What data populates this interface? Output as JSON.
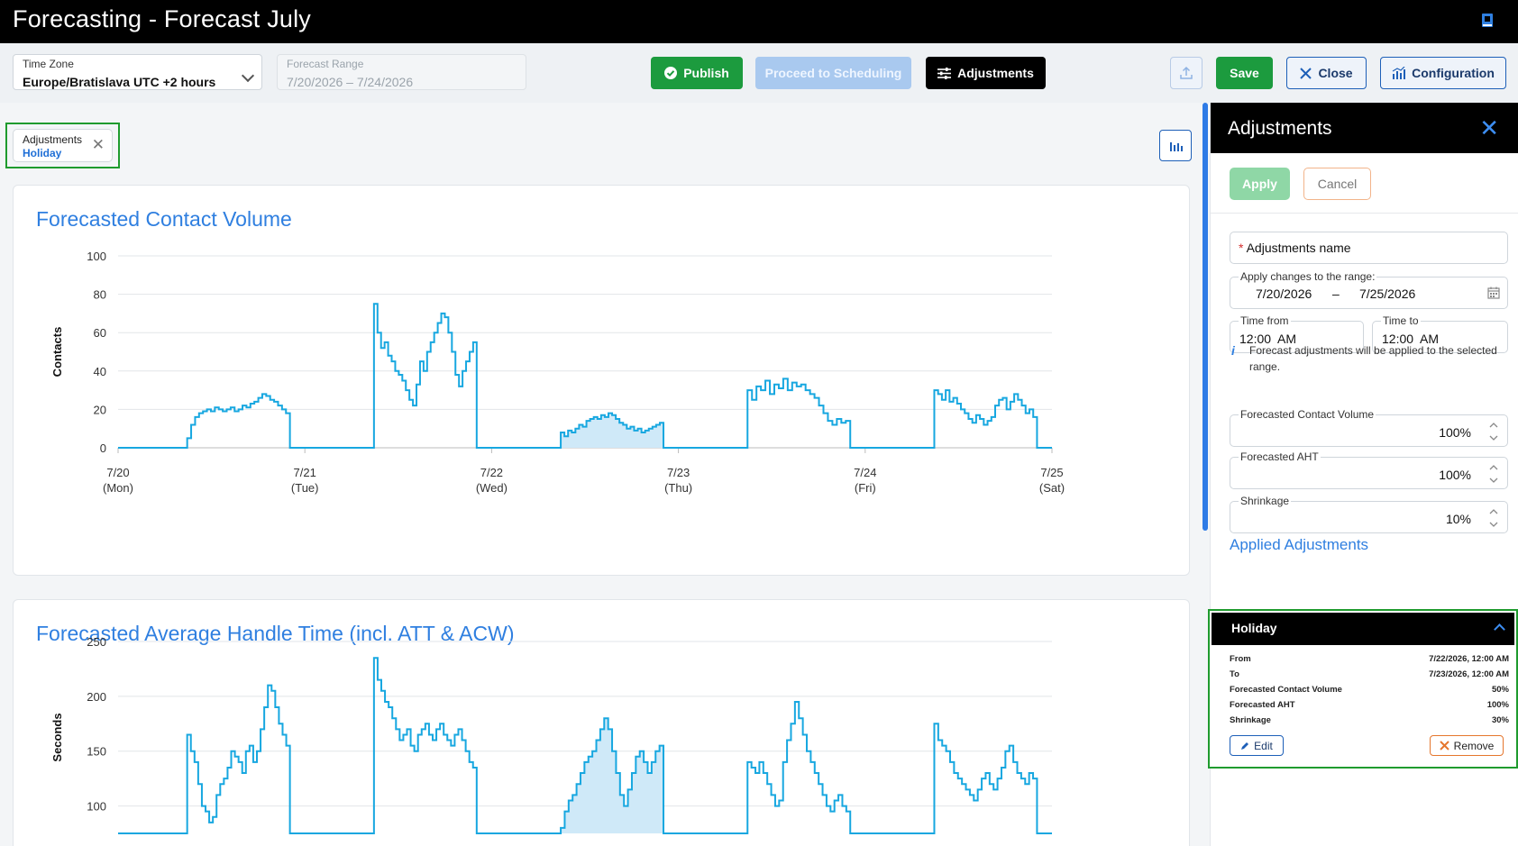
{
  "app": {
    "title": "Forecasting - Forecast July",
    "help_icon": "book-icon"
  },
  "toolbar": {
    "timezone": {
      "label": "Time Zone",
      "value": "Europe/Bratislava UTC +2 hours"
    },
    "forecast_range": {
      "label": "Forecast Range",
      "value": "7/20/2026 – 7/24/2026"
    },
    "publish": "Publish",
    "proceed": "Proceed to Scheduling",
    "adjustments": "Adjustments",
    "save": "Save",
    "close": "Close",
    "configuration": "Configuration"
  },
  "chip": {
    "line1": "Adjustments",
    "line2": "Holiday"
  },
  "colors": {
    "accent": "#2f7fe0",
    "green": "#1c9b3e",
    "series": "#17a7e0",
    "highlight_fill": "#cfe9f8"
  },
  "charts": [
    {
      "type": "line",
      "title": "Forecasted Contact Volume",
      "ylabel": "Contacts",
      "ylim": [
        0,
        100
      ],
      "yticks": [
        "0",
        "20",
        "40",
        "60",
        "80",
        "100"
      ],
      "xticks": [
        [
          "7/20",
          "(Mon)"
        ],
        [
          "7/21",
          "(Tue)"
        ],
        [
          "7/22",
          "(Wed)"
        ],
        [
          "7/23",
          "(Thu)"
        ],
        [
          "7/24",
          "(Fri)"
        ],
        [
          "7/25",
          "(Sat)"
        ]
      ],
      "xlim_days": [
        0,
        5
      ],
      "highlight_days": [
        2,
        3
      ],
      "segments": [
        {
          "start": 0.37,
          "end": 0.92,
          "values": [
            5,
            12,
            16,
            18,
            19,
            20,
            19,
            21,
            20,
            19,
            20,
            21,
            19,
            20,
            22,
            21,
            23,
            24,
            26,
            28,
            27,
            25,
            24,
            22,
            20,
            18
          ]
        },
        {
          "start": 1.37,
          "end": 1.92,
          "values": [
            75,
            60,
            52,
            55,
            48,
            45,
            40,
            38,
            35,
            30,
            25,
            22,
            33,
            45,
            40,
            50,
            55,
            60,
            65,
            70,
            68,
            60,
            50,
            38,
            32,
            40,
            45,
            50,
            55
          ]
        },
        {
          "start": 2.37,
          "end": 2.92,
          "values": [
            8,
            6,
            9,
            8,
            10,
            12,
            11,
            14,
            15,
            16,
            15,
            17,
            16,
            18,
            17,
            15,
            13,
            12,
            10,
            11,
            9,
            10,
            8,
            9,
            10,
            11,
            12,
            13
          ]
        },
        {
          "start": 3.37,
          "end": 3.92,
          "values": [
            30,
            25,
            32,
            30,
            35,
            28,
            33,
            31,
            36,
            30,
            34,
            32,
            33,
            30,
            28,
            26,
            22,
            18,
            14,
            12,
            15,
            13,
            14
          ]
        },
        {
          "start": 4.37,
          "end": 4.92,
          "values": [
            30,
            28,
            25,
            30,
            24,
            26,
            23,
            20,
            18,
            15,
            13,
            17,
            15,
            12,
            14,
            16,
            22,
            25,
            26,
            20,
            24,
            28,
            25,
            22,
            18,
            20,
            16
          ]
        }
      ]
    },
    {
      "type": "line",
      "title": "Forecasted Average Handle Time (incl. ATT & ACW)",
      "ylabel": "Seconds",
      "ylim": [
        75,
        250
      ],
      "yticks": [
        "100",
        "150",
        "200",
        "250"
      ],
      "xlim_days": [
        0,
        5
      ],
      "highlight_days": [
        2,
        3
      ],
      "segments": [
        {
          "start": 0.37,
          "end": 0.92,
          "values": [
            165,
            150,
            140,
            120,
            100,
            95,
            85,
            90,
            110,
            120,
            125,
            135,
            150,
            145,
            140,
            130,
            150,
            155,
            140,
            150,
            170,
            190,
            210,
            205,
            190,
            175,
            165,
            155
          ]
        },
        {
          "start": 1.37,
          "end": 1.92,
          "values": [
            235,
            215,
            205,
            195,
            190,
            180,
            170,
            160,
            165,
            170,
            155,
            150,
            165,
            170,
            175,
            165,
            160,
            170,
            175,
            165,
            160,
            155,
            165,
            170,
            160,
            150,
            140,
            135
          ]
        },
        {
          "start": 2.37,
          "end": 2.92,
          "values": [
            80,
            95,
            105,
            110,
            120,
            130,
            140,
            145,
            150,
            160,
            170,
            180,
            170,
            150,
            130,
            110,
            100,
            115,
            130,
            145,
            150,
            140,
            130,
            140,
            150,
            155
          ]
        },
        {
          "start": 3.37,
          "end": 3.92,
          "values": [
            140,
            135,
            130,
            140,
            130,
            120,
            110,
            100,
            105,
            140,
            160,
            175,
            195,
            180,
            165,
            150,
            140,
            130,
            120,
            110,
            100,
            95,
            105,
            110,
            100,
            95
          ]
        },
        {
          "start": 4.37,
          "end": 4.92,
          "values": [
            175,
            160,
            155,
            150,
            140,
            130,
            125,
            120,
            115,
            110,
            105,
            115,
            125,
            130,
            120,
            115,
            125,
            135,
            150,
            155,
            140,
            130,
            125,
            120,
            130,
            125
          ]
        }
      ]
    }
  ],
  "panel": {
    "title": "Adjustments",
    "apply": "Apply",
    "cancel": "Cancel",
    "name_field": {
      "required_mark": "*",
      "placeholder": "Adjustments name"
    },
    "range": {
      "label": "Apply changes to the range:",
      "from": "7/20/2026",
      "dash": "–",
      "to": "7/25/2026"
    },
    "time_from": {
      "label": "Time from",
      "value": "12:00  AM"
    },
    "time_to": {
      "label": "Time to",
      "value": "12:00  AM"
    },
    "info": "Forecast adjustments will be applied to the selected range.",
    "contact_volume": {
      "label": "Forecasted Contact Volume",
      "value": "100%"
    },
    "aht": {
      "label": "Forecasted AHT",
      "value": "100%"
    },
    "shrinkage": {
      "label": "Shrinkage",
      "value": "10%"
    },
    "applied_title": "Applied Adjustments",
    "applied": {
      "name": "Holiday",
      "rows": [
        {
          "key": "From",
          "value": "7/22/2026, 12:00 AM"
        },
        {
          "key": "To",
          "value": "7/23/2026, 12:00 AM"
        },
        {
          "key": "Forecasted Contact Volume",
          "value": "50%"
        },
        {
          "key": "Forecasted AHT",
          "value": "100%"
        },
        {
          "key": "Shrinkage",
          "value": "30%"
        }
      ],
      "edit": "Edit",
      "remove": "Remove"
    }
  }
}
